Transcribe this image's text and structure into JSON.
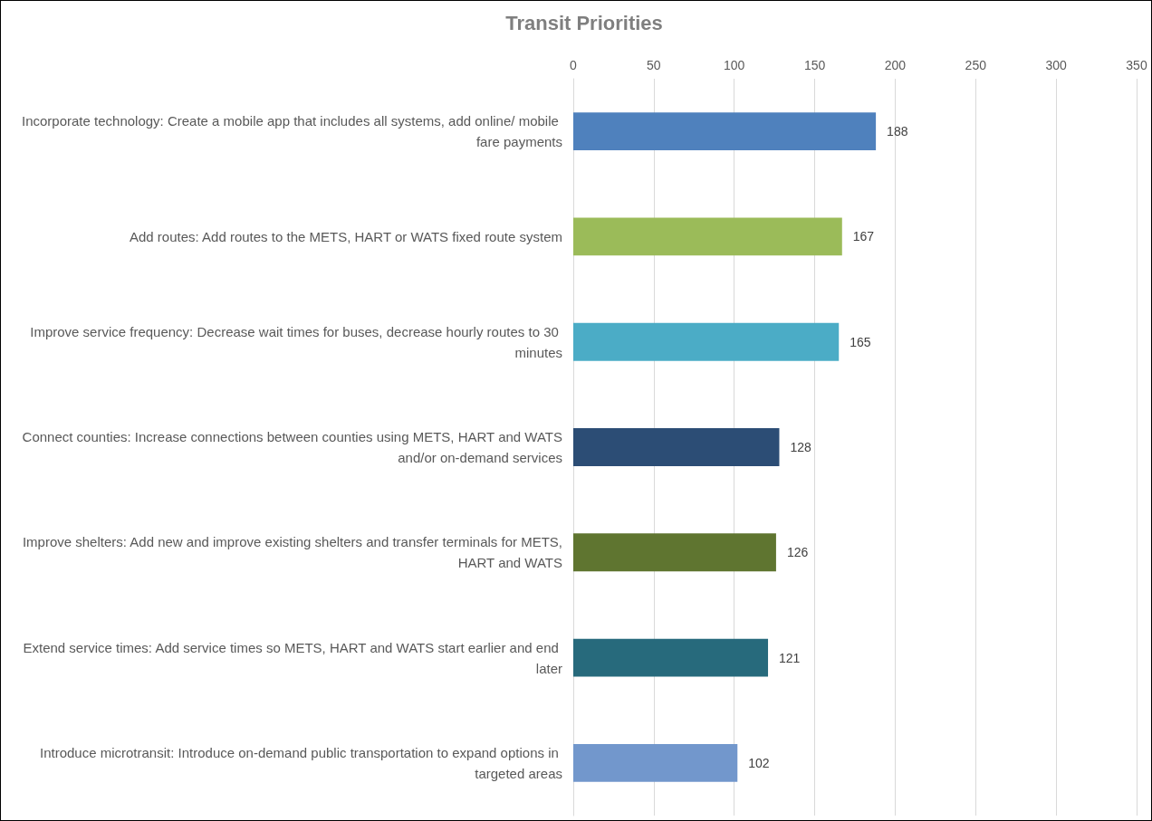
{
  "chart_data": {
    "type": "bar",
    "orientation": "horizontal",
    "title": "Transit Priorities",
    "categories": [
      "Incorporate technology: Create a mobile app that includes all systems, add online/ mobile fare payments",
      "Add routes: Add routes to the METS, HART or WATS fixed route system",
      "Improve service frequency: Decrease wait times for buses, decrease hourly routes to 30 minutes",
      "Connect counties: Increase connections between counties using METS, HART and WATS and/or on-demand services",
      "Improve shelters: Add new and improve existing shelters and transfer terminals for METS, HART and WATS",
      "Extend service times: Add service times so METS, HART and WATS start earlier and end later",
      "Introduce microtransit: Introduce on-demand public transportation to expand options in targeted areas"
    ],
    "values": [
      188,
      167,
      165,
      128,
      126,
      121,
      102
    ],
    "colors": [
      "#4f81bd",
      "#9bbb59",
      "#4bacc6",
      "#2c4d75",
      "#5f7530",
      "#276a7c",
      "#7297cc"
    ],
    "xlim": [
      0,
      350
    ],
    "xticks": [
      0,
      50,
      100,
      150,
      200,
      250,
      300,
      350
    ],
    "grid": "x",
    "data_labels": true
  }
}
